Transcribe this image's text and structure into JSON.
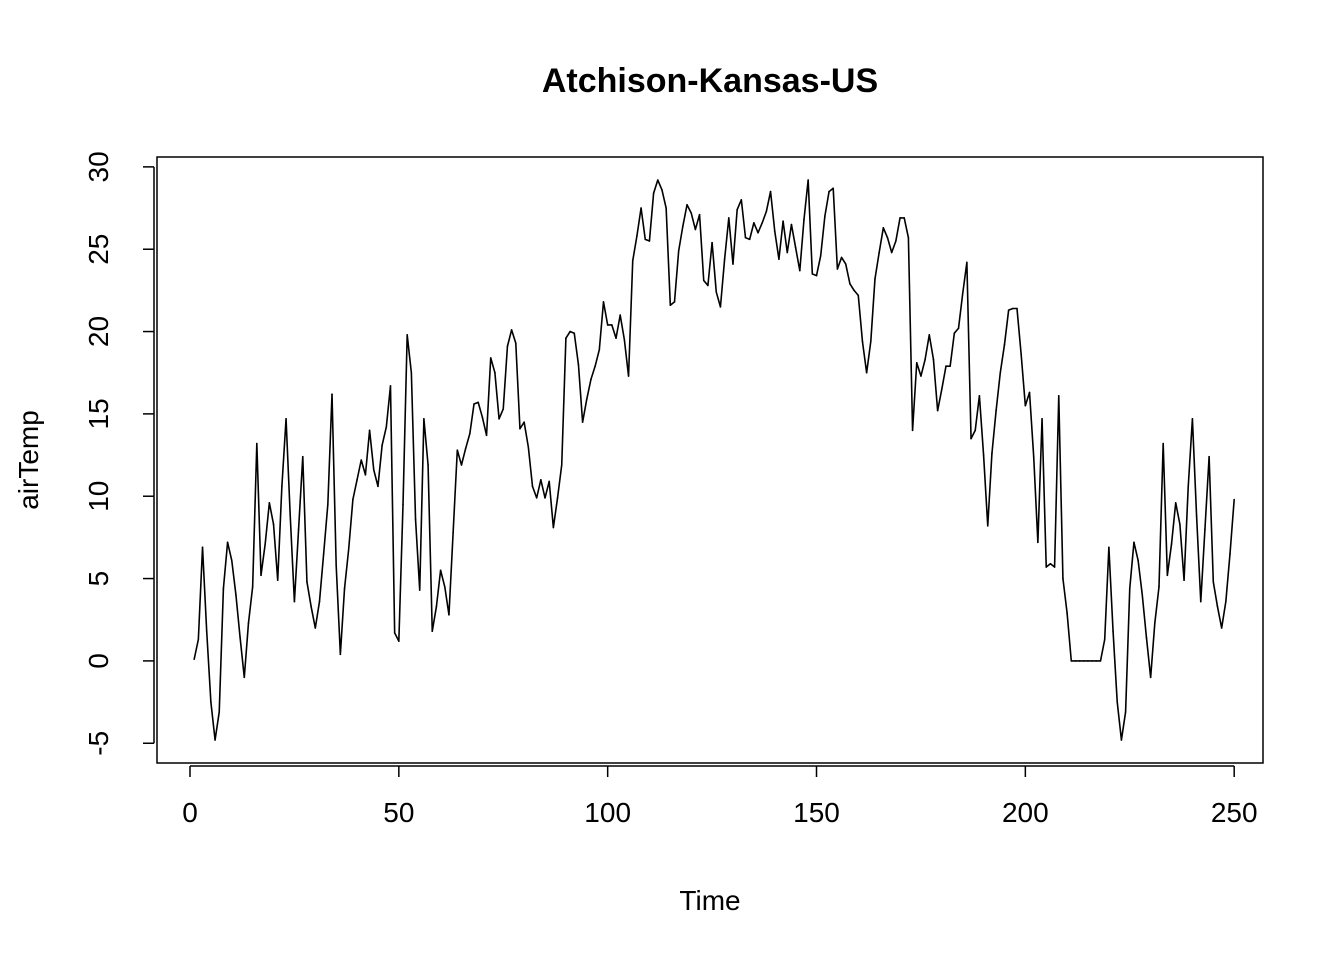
{
  "chart_data": {
    "type": "line",
    "title": "Atchison-Kansas-US",
    "xlabel": "Time",
    "ylabel": "airTemp",
    "xlim": [
      -7.9,
      256.9
    ],
    "ylim": [
      -6.2,
      30.6
    ],
    "x_ticks": [
      0,
      50,
      100,
      150,
      200,
      250
    ],
    "y_ticks": [
      -5,
      0,
      5,
      10,
      15,
      20,
      25,
      30
    ],
    "x_tick_labels": [
      "0",
      "50",
      "100",
      "150",
      "200",
      "250"
    ],
    "y_tick_labels": [
      "-5",
      "0",
      "5",
      "10",
      "15",
      "20",
      "25",
      "30"
    ],
    "grid": false,
    "line_color": "#000000",
    "series": [
      {
        "x_start": 1,
        "x_step": 1,
        "values": [
          0.1,
          1.3,
          6.9,
          1.8,
          -2.5,
          -4.8,
          -3.1,
          4.4,
          7.2,
          6.1,
          4.0,
          1.4,
          -1.0,
          2.3,
          4.5,
          13.2,
          5.2,
          7.1,
          9.6,
          8.3,
          4.9,
          10.6,
          14.7,
          8.8,
          3.6,
          8.0,
          12.4,
          4.8,
          3.3,
          2.0,
          3.6,
          6.5,
          9.5,
          16.2,
          5.8,
          0.4,
          4.4,
          6.8,
          9.8,
          11.0,
          12.2,
          11.3,
          14.0,
          11.6,
          10.6,
          13.1,
          14.2,
          16.7,
          1.7,
          1.2,
          9.5,
          19.8,
          17.5,
          8.6,
          4.3,
          14.7,
          11.9,
          1.8,
          3.3,
          5.5,
          4.5,
          2.8,
          7.8,
          12.8,
          11.9,
          12.9,
          13.8,
          15.6,
          15.7,
          14.8,
          13.7,
          18.4,
          17.5,
          14.7,
          15.3,
          19.1,
          20.1,
          19.3,
          14.1,
          14.5,
          13.0,
          10.6,
          9.9,
          11.0,
          9.9,
          10.9,
          8.1,
          9.9,
          11.9,
          19.6,
          20.0,
          19.9,
          18.0,
          14.5,
          15.9,
          17.1,
          17.9,
          18.9,
          21.8,
          20.4,
          20.4,
          19.6,
          21.0,
          19.5,
          17.3,
          24.3,
          25.8,
          27.5,
          25.6,
          25.5,
          28.4,
          29.2,
          28.6,
          27.5,
          21.6,
          21.8,
          24.9,
          26.4,
          27.7,
          27.2,
          26.2,
          27.1,
          23.1,
          22.8,
          25.4,
          22.4,
          21.5,
          24.4,
          26.9,
          24.1,
          27.4,
          28.0,
          25.7,
          25.6,
          26.6,
          26.0,
          26.6,
          27.3,
          28.5,
          26.1,
          24.4,
          26.7,
          24.8,
          26.5,
          25.1,
          23.7,
          26.8,
          29.2,
          23.5,
          23.4,
          24.6,
          27.0,
          28.5,
          28.7,
          23.8,
          24.5,
          24.1,
          22.9,
          22.5,
          22.2,
          19.4,
          17.5,
          19.4,
          23.2,
          24.8,
          26.3,
          25.7,
          24.8,
          25.5,
          26.9,
          26.9,
          25.7,
          14.0,
          18.1,
          17.3,
          18.3,
          19.8,
          18.3,
          15.2,
          16.5,
          17.9,
          17.9,
          19.9,
          20.2,
          22.3,
          24.2,
          13.5,
          14.0,
          16.1,
          12.5,
          8.2,
          12.6,
          15.2,
          17.5,
          19.2,
          21.3,
          21.4,
          21.4,
          18.6,
          15.5,
          16.3,
          12.4,
          7.2,
          14.7,
          5.7,
          5.9,
          5.7,
          16.1,
          5.0,
          2.9,
          0.0,
          0.0,
          0.0,
          0.0,
          0.0,
          0.0,
          0.0,
          0.0,
          1.3,
          6.9,
          1.8,
          -2.5,
          -4.8,
          -3.1,
          4.4,
          7.2,
          6.1,
          4.0,
          1.4,
          -1.0,
          2.3,
          4.5,
          13.2,
          5.2,
          7.1,
          9.6,
          8.3,
          4.9,
          10.6,
          14.7,
          8.8,
          3.6,
          8.0,
          12.4,
          4.8,
          3.3,
          2.0,
          3.6,
          6.5,
          9.8
        ]
      }
    ]
  }
}
